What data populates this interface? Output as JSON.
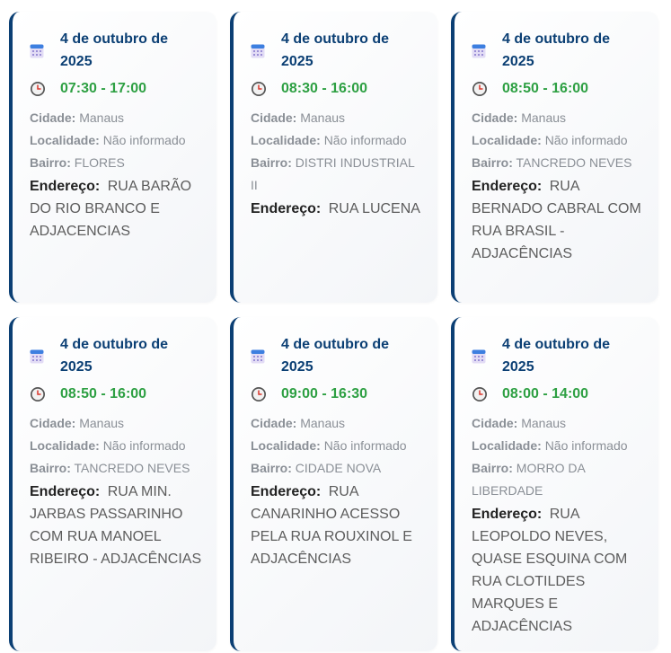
{
  "labels": {
    "cidade": "Cidade:",
    "localidade": "Localidade:",
    "bairro": "Bairro:",
    "endereco": "Endereço:"
  },
  "colors": {
    "accent": "#0b3f74",
    "time": "#2ea043",
    "label": "#8a8f96"
  },
  "icons": {
    "date": "calendar-icon",
    "time": "clock-icon"
  },
  "cards": [
    {
      "date": "4 de outubro de 2025",
      "time": "07:30 - 17:00",
      "cidade": "Manaus",
      "localidade": "Não informado",
      "bairro": "FLORES",
      "endereco": "RUA BARÃO DO RIO BRANCO E ADJACENCIAS"
    },
    {
      "date": "4 de outubro de 2025",
      "time": "08:30 - 16:00",
      "cidade": "Manaus",
      "localidade": "Não informado",
      "bairro": "DISTRI INDUSTRIAL II",
      "endereco": "RUA LUCENA"
    },
    {
      "date": "4 de outubro de 2025",
      "time": "08:50 - 16:00",
      "cidade": "Manaus",
      "localidade": "Não informado",
      "bairro": "TANCREDO NEVES",
      "endereco": "RUA BERNADO CABRAL COM RUA BRASIL - ADJACÊNCIAS"
    },
    {
      "date": "4 de outubro de 2025",
      "time": "08:50 - 16:00",
      "cidade": "Manaus",
      "localidade": "Não informado",
      "bairro": "TANCREDO NEVES",
      "endereco": "RUA MIN. JARBAS PASSARINHO COM RUA MANOEL RIBEIRO - ADJACÊNCIAS"
    },
    {
      "date": "4 de outubro de 2025",
      "time": "09:00 - 16:30",
      "cidade": "Manaus",
      "localidade": "Não informado",
      "bairro": "CIDADE NOVA",
      "endereco": "RUA CANARINHO ACESSO PELA RUA ROUXINOL E ADJACÊNCIAS"
    },
    {
      "date": "4 de outubro de 2025",
      "time": "08:00 - 14:00",
      "cidade": "Manaus",
      "localidade": "Não informado",
      "bairro": "MORRO DA LIBERDADE",
      "endereco": "RUA LEOPOLDO NEVES, QUASE ESQUINA COM RUA CLOTILDES MARQUES E ADJACÊNCIAS"
    }
  ]
}
